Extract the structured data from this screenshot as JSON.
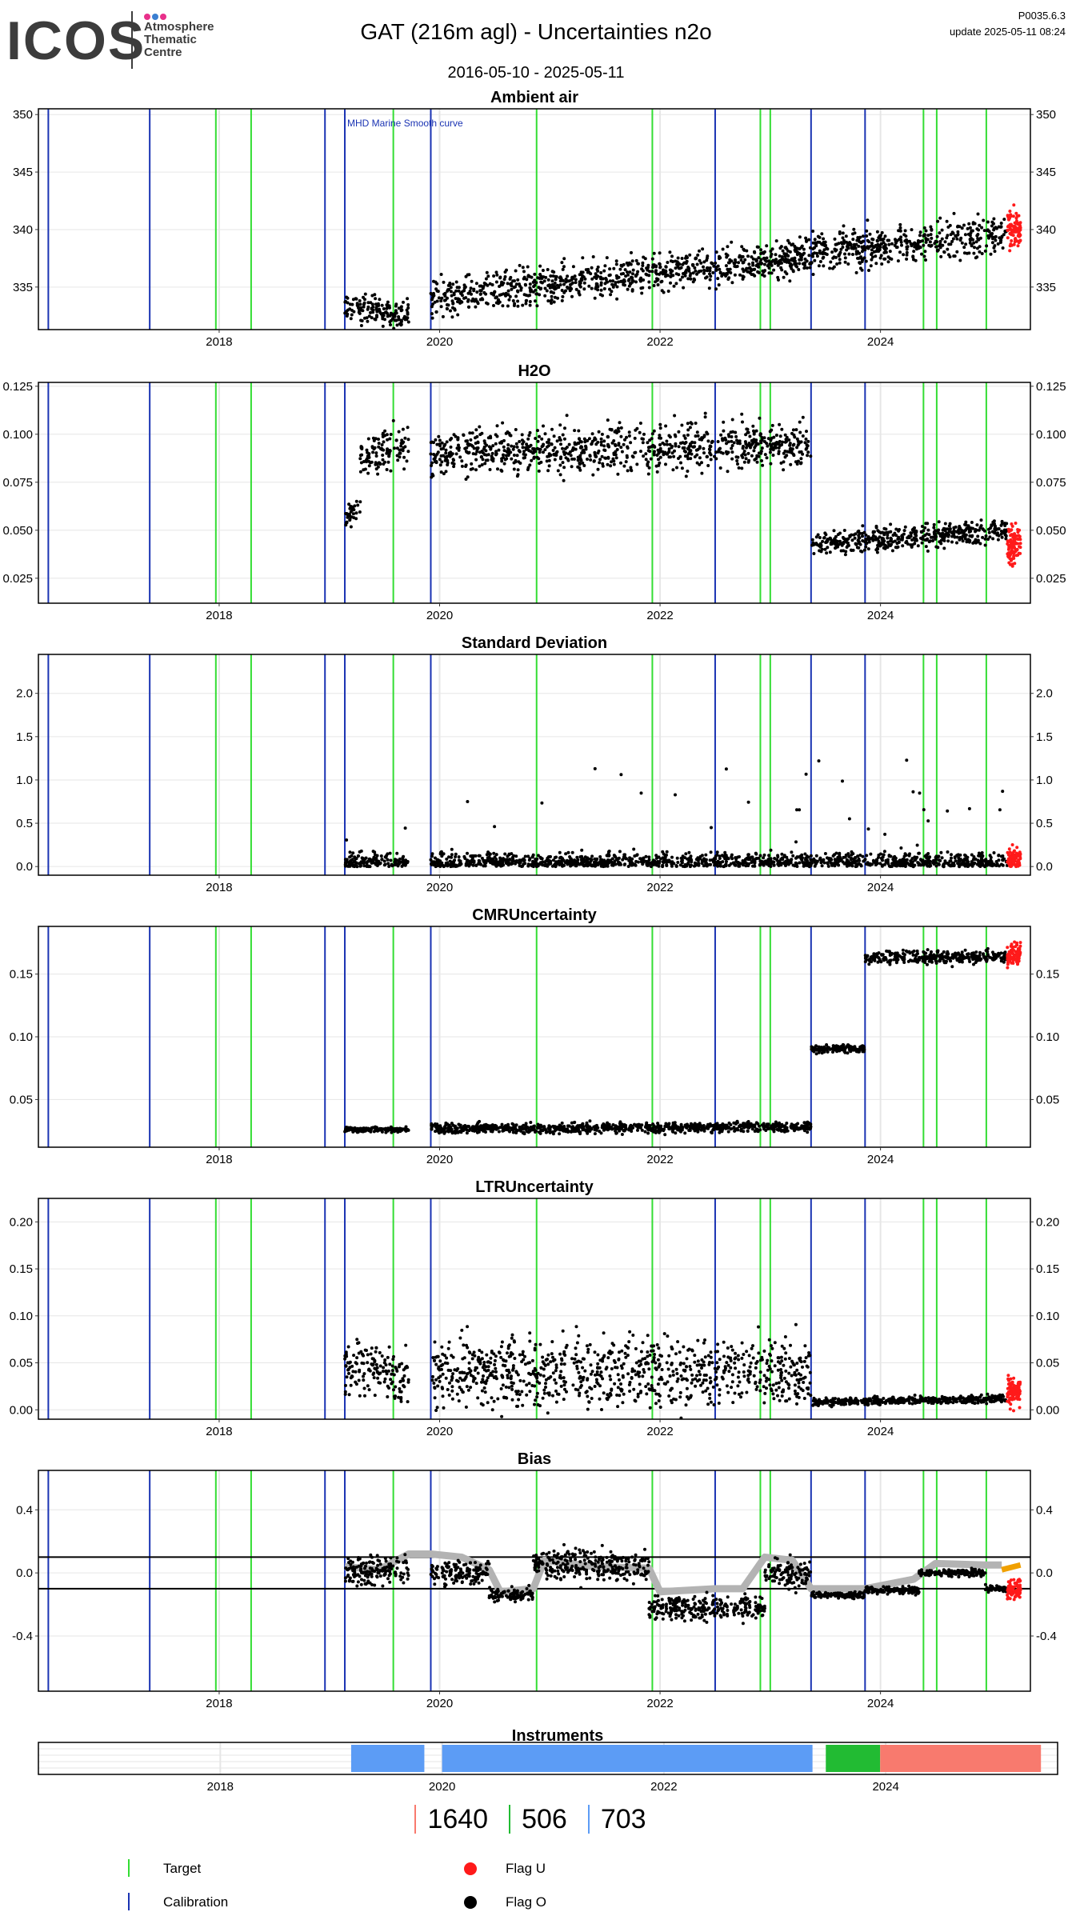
{
  "logo": {
    "word": "ICOS",
    "line1": "Atmosphere",
    "line2": "Thematic",
    "line3": "Centre",
    "dot_colors": [
      "#e8308a",
      "#3b7fd1",
      "#e8308a"
    ]
  },
  "header": {
    "title": "GAT  (216m agl) - Uncertainties n2o",
    "date_range": "2016-05-10 - 2025-05-11",
    "version": "P0035.6.3",
    "update": "update  2025-05-11 08:24"
  },
  "colors": {
    "target": "#33dd33",
    "calibration": "#1a33b3",
    "flag_u": "#ff1a1a",
    "flag_o": "#000000",
    "smooth": "#b3b3b3",
    "bias_orange": "#f0a000",
    "instrument_1640": "#f87a6e",
    "instrument_506": "#22bb33",
    "instrument_703": "#5c9cf5",
    "grid": "#e6e6e6"
  },
  "chart_data": {
    "x_range": [
      2016.36,
      2025.36
    ],
    "x_ticks": [
      "2018",
      "2020",
      "2022",
      "2024"
    ],
    "x_tick_values": [
      2018,
      2020,
      2022,
      2024
    ],
    "calibration_lines": [
      2016.45,
      2017.37,
      2018.96,
      2019.14,
      2019.92,
      2022.5,
      2023.37,
      2023.86
    ],
    "target_lines": [
      2017.97,
      2018.29,
      2019.58,
      2020.88,
      2021.93,
      2022.91,
      2023.0,
      2024.39,
      2024.51,
      2024.96
    ],
    "panels": [
      {
        "type": "scatter",
        "title": "Ambient air",
        "ylim": [
          331.3,
          350.5
        ],
        "y_ticks": [
          335,
          340,
          345,
          350
        ],
        "annotation": "MHD Marine Smooth curve",
        "segments": [
          {
            "x": [
              2019.14,
              2019.72
            ],
            "y": [
              333.2,
              332.6
            ],
            "spread": 1.2
          },
          {
            "x": [
              2019.92,
              2023.37
            ],
            "y": [
              334.0,
              337.8
            ],
            "spread": 1.6
          },
          {
            "x": [
              2023.37,
              2025.15
            ],
            "y": [
              338.0,
              339.6
            ],
            "spread": 1.6
          }
        ],
        "red": {
          "x": [
            2025.15,
            2025.27
          ],
          "y": [
            340.2,
            339.8
          ],
          "spread": 1.5
        }
      },
      {
        "type": "scatter",
        "title": "H2O",
        "ylim": [
          0.012,
          0.127
        ],
        "y_ticks": [
          0.025,
          0.05,
          0.075,
          0.1,
          0.125
        ],
        "segments": [
          {
            "x": [
              2019.14,
              2019.28
            ],
            "y": [
              0.055,
              0.062
            ],
            "spread": 0.006
          },
          {
            "x": [
              2019.28,
              2019.72
            ],
            "y": [
              0.088,
              0.095
            ],
            "spread": 0.01
          },
          {
            "x": [
              2019.92,
              2023.37
            ],
            "y": [
              0.09,
              0.095
            ],
            "spread": 0.012
          },
          {
            "x": [
              2023.37,
              2025.15
            ],
            "y": [
              0.043,
              0.05
            ],
            "spread": 0.006
          }
        ],
        "red": {
          "x": [
            2025.15,
            2025.27
          ],
          "y": [
            0.04,
            0.045
          ],
          "spread": 0.01
        }
      },
      {
        "type": "scatter",
        "title": "Standard Deviation",
        "ylim": [
          -0.1,
          2.45
        ],
        "y_ticks": [
          0.0,
          0.5,
          1.0,
          1.5,
          2.0
        ],
        "segments": [
          {
            "x": [
              2019.14,
              2019.72
            ],
            "y": [
              0.05,
              0.05
            ],
            "spread": 0.15
          },
          {
            "x": [
              2019.92,
              2023.37
            ],
            "y": [
              0.05,
              0.05
            ],
            "spread": 0.15
          },
          {
            "x": [
              2023.37,
              2025.15
            ],
            "y": [
              0.05,
              0.05
            ],
            "spread": 0.15
          }
        ],
        "red": {
          "x": [
            2025.15,
            2025.27
          ],
          "y": [
            0.15,
            0.15
          ],
          "spread": 0.2
        }
      },
      {
        "type": "scatter",
        "title": "CMRUncertainty",
        "ylim": [
          0.012,
          0.188
        ],
        "y_ticks": [
          0.05,
          0.1,
          0.15
        ],
        "segments": [
          {
            "x": [
              2019.14,
              2019.72
            ],
            "y": [
              0.026,
              0.026
            ],
            "spread": 0.002
          },
          {
            "x": [
              2019.92,
              2023.37
            ],
            "y": [
              0.027,
              0.028
            ],
            "spread": 0.004
          },
          {
            "x": [
              2023.37,
              2023.86
            ],
            "y": [
              0.09,
              0.091
            ],
            "spread": 0.003
          },
          {
            "x": [
              2023.86,
              2025.15
            ],
            "y": [
              0.163,
              0.164
            ],
            "spread": 0.005
          }
        ],
        "red": {
          "x": [
            2025.15,
            2025.27
          ],
          "y": [
            0.166,
            0.166
          ],
          "spread": 0.008
        }
      },
      {
        "type": "scatter",
        "title": "LTRUncertainty",
        "ylim": [
          -0.01,
          0.225
        ],
        "y_ticks": [
          0.0,
          0.05,
          0.1,
          0.15,
          0.2
        ],
        "segments": [
          {
            "x": [
              2019.14,
              2019.72
            ],
            "y": [
              0.045,
              0.035
            ],
            "spread": 0.03
          },
          {
            "x": [
              2019.92,
              2023.37
            ],
            "y": [
              0.04,
              0.04
            ],
            "spread": 0.035
          },
          {
            "x": [
              2023.37,
              2025.15
            ],
            "y": [
              0.008,
              0.012
            ],
            "spread": 0.004
          }
        ],
        "red": {
          "x": [
            2025.15,
            2025.27
          ],
          "y": [
            0.02,
            0.02
          ],
          "spread": 0.015
        }
      },
      {
        "type": "scatter",
        "title": "Bias",
        "ylim": [
          -0.75,
          0.65
        ],
        "y_ticks": [
          -0.4,
          0.0,
          0.4
        ],
        "hlines": [
          0.1,
          -0.1
        ],
        "segments": [
          {
            "x": [
              2019.14,
              2019.72
            ],
            "y": [
              0.02,
              0.02
            ],
            "spread": 0.09
          },
          {
            "x": [
              2019.92,
              2020.45
            ],
            "y": [
              0.0,
              0.0
            ],
            "spread": 0.08
          },
          {
            "x": [
              2020.45,
              2020.85
            ],
            "y": [
              -0.14,
              -0.14
            ],
            "spread": 0.04
          },
          {
            "x": [
              2020.85,
              2021.9
            ],
            "y": [
              0.05,
              0.05
            ],
            "spread": 0.09
          },
          {
            "x": [
              2021.9,
              2022.95
            ],
            "y": [
              -0.22,
              -0.22
            ],
            "spread": 0.08
          },
          {
            "x": [
              2022.95,
              2023.37
            ],
            "y": [
              0.0,
              0.0
            ],
            "spread": 0.09
          },
          {
            "x": [
              2023.37,
              2023.86
            ],
            "y": [
              -0.14,
              -0.14
            ],
            "spread": 0.02
          },
          {
            "x": [
              2023.86,
              2024.35
            ],
            "y": [
              -0.11,
              -0.11
            ],
            "spread": 0.02
          },
          {
            "x": [
              2024.35,
              2024.95
            ],
            "y": [
              0.0,
              0.0
            ],
            "spread": 0.02
          },
          {
            "x": [
              2024.95,
              2025.15
            ],
            "y": [
              -0.1,
              -0.1
            ],
            "spread": 0.02
          }
        ],
        "red": {
          "x": [
            2025.15,
            2025.27
          ],
          "y": [
            -0.1,
            -0.1
          ],
          "spread": 0.06
        },
        "smooth": [
          [
            2019.14,
            0.04
          ],
          [
            2019.45,
            0.02
          ],
          [
            2019.72,
            0.12
          ],
          [
            2019.92,
            0.12
          ],
          [
            2020.2,
            0.1
          ],
          [
            2020.45,
            0.02
          ],
          [
            2020.55,
            -0.12
          ],
          [
            2020.85,
            -0.1
          ],
          [
            2020.95,
            0.08
          ],
          [
            2021.4,
            0.04
          ],
          [
            2021.9,
            0.03
          ],
          [
            2022.0,
            -0.12
          ],
          [
            2022.5,
            -0.1
          ],
          [
            2022.75,
            -0.1
          ],
          [
            2022.95,
            0.1
          ],
          [
            2023.2,
            0.08
          ],
          [
            2023.37,
            -0.1
          ],
          [
            2023.86,
            -0.1
          ],
          [
            2024.3,
            -0.04
          ],
          [
            2024.5,
            0.06
          ],
          [
            2024.95,
            0.05
          ],
          [
            2025.1,
            0.05
          ]
        ],
        "orange": [
          [
            2025.1,
            0.02
          ],
          [
            2025.27,
            0.05
          ]
        ]
      }
    ],
    "instruments": {
      "title": "Instruments",
      "x_range": [
        2016.36,
        2025.55
      ],
      "x_ticks": [
        "2018",
        "2020",
        "2022",
        "2024"
      ],
      "x_tick_values": [
        2018,
        2020,
        2022,
        2024
      ],
      "bars": [
        {
          "id": "703",
          "x": [
            2019.18,
            2019.84
          ],
          "color": "#5c9cf5"
        },
        {
          "id": "703",
          "x": [
            2020.0,
            2023.34
          ],
          "color": "#5c9cf5"
        },
        {
          "id": "506",
          "x": [
            2023.46,
            2023.95
          ],
          "color": "#22bb33"
        },
        {
          "id": "1640",
          "x": [
            2023.95,
            2025.4
          ],
          "color": "#f87a6e"
        }
      ]
    }
  },
  "counts": [
    {
      "label": "1640",
      "color": "#f87a6e"
    },
    {
      "label": "506",
      "color": "#22bb33"
    },
    {
      "label": "703",
      "color": "#5c9cf5"
    }
  ],
  "legend": {
    "target": "Target",
    "calibration": "Calibration",
    "flag_u": "Flag U",
    "flag_o": "Flag O"
  }
}
